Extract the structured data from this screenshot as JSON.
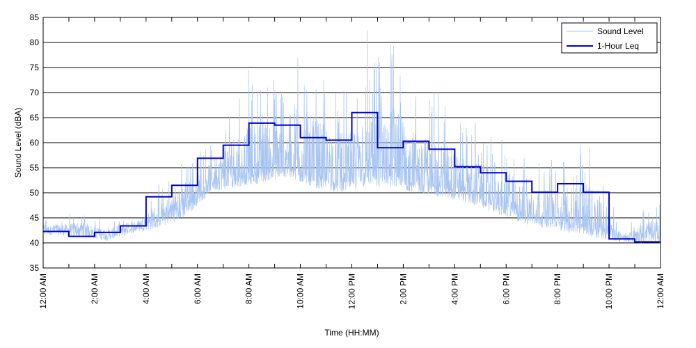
{
  "chart_data": {
    "type": "line",
    "title": "",
    "xlabel": "Time (HH:MM)",
    "ylabel": "Sound Level (dBA)",
    "xlim": [
      0,
      24
    ],
    "ylim": [
      35,
      85
    ],
    "yticks": [
      35,
      40,
      45,
      50,
      55,
      60,
      65,
      70,
      75,
      80,
      85
    ],
    "xticks": [
      0,
      1,
      2,
      3,
      4,
      5,
      6,
      7,
      8,
      9,
      10,
      11,
      12,
      13,
      14,
      15,
      16,
      17,
      18,
      19,
      20,
      21,
      22,
      23,
      24
    ],
    "xtick_labels": [
      {
        "x": 0,
        "label": "12:00 AM"
      },
      {
        "x": 2,
        "label": "2:00 AM"
      },
      {
        "x": 4,
        "label": "4:00 AM"
      },
      {
        "x": 6,
        "label": "6:00 AM"
      },
      {
        "x": 8,
        "label": "8:00 AM"
      },
      {
        "x": 10,
        "label": "10:00 AM"
      },
      {
        "x": 12,
        "label": "12:00 PM"
      },
      {
        "x": 14,
        "label": "2:00 PM"
      },
      {
        "x": 16,
        "label": "4:00 PM"
      },
      {
        "x": 18,
        "label": "6:00 PM"
      },
      {
        "x": 20,
        "label": "8:00 PM"
      },
      {
        "x": 22,
        "label": "10:00 PM"
      },
      {
        "x": 24,
        "label": "12:00 AM"
      }
    ],
    "grid": "horizontal",
    "legend_position": "top-right",
    "series": [
      {
        "name": "Sound Level",
        "color": "#a8c4f0",
        "style": "thin-line",
        "hourly_baseline": [
          41.5,
          41,
          40.5,
          42,
          43,
          45,
          50,
          51,
          52,
          53,
          51,
          50,
          51,
          51,
          50,
          49,
          48,
          46,
          44,
          43,
          42,
          41,
          40,
          40
        ],
        "hourly_peak": [
          45,
          47,
          44,
          45,
          52,
          57,
          61,
          71,
          74.5,
          72.5,
          77,
          70,
          73,
          82.5,
          71,
          70,
          64,
          62,
          58,
          57,
          58,
          59.5,
          42,
          48
        ],
        "notable_peaks": [
          {
            "x": 8.0,
            "y": 74.5
          },
          {
            "x": 9.9,
            "y": 77
          },
          {
            "x": 12.6,
            "y": 82.5
          },
          {
            "x": 13.1,
            "y": 71
          },
          {
            "x": 15.2,
            "y": 70
          },
          {
            "x": 16.8,
            "y": 64
          },
          {
            "x": 20.9,
            "y": 59.5
          },
          {
            "x": 24.0,
            "y": 48
          }
        ]
      },
      {
        "name": "1-Hour Leq",
        "color": "#0000cc",
        "style": "step",
        "x": [
          0,
          1,
          2,
          3,
          4,
          5,
          6,
          7,
          8,
          9,
          10,
          11,
          12,
          13,
          14,
          15,
          16,
          17,
          18,
          19,
          20,
          21,
          22,
          23
        ],
        "values": [
          42.3,
          41.3,
          42.1,
          43.4,
          49.2,
          51.5,
          56.9,
          59.5,
          63.9,
          63.5,
          61.0,
          60.5,
          66.0,
          59.0,
          60.3,
          58.7,
          55.2,
          54.0,
          52.3,
          50.1,
          51.8,
          50.1,
          40.8,
          40.2
        ]
      }
    ]
  }
}
